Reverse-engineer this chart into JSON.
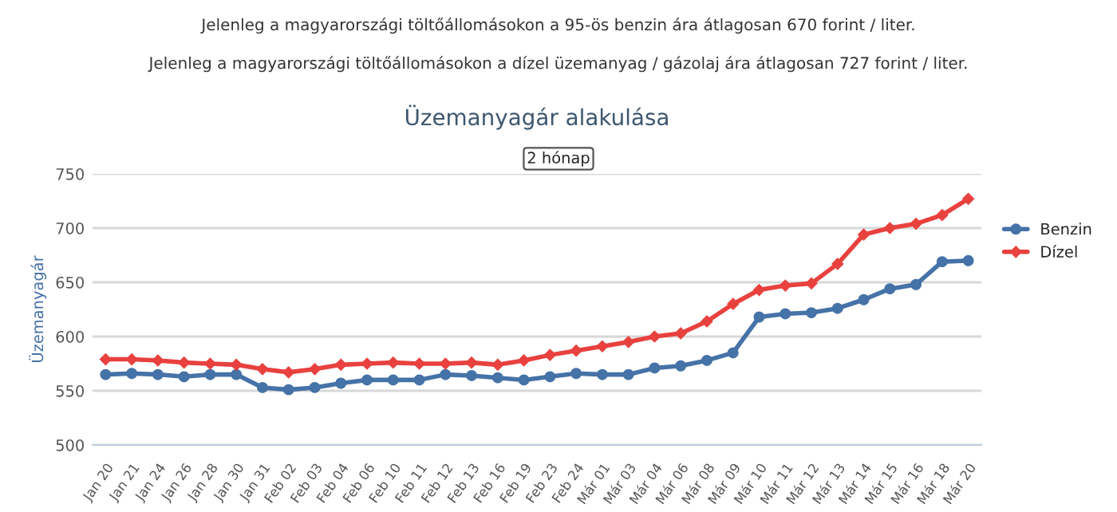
{
  "chart_data": {
    "type": "line",
    "title": "Üzemanyagár alakulása",
    "ylabel": "Üzemanyagár",
    "annotations": [
      "Jelenleg a magyarországi töltőállomásokon a 95-ös benzin ára átlagosan 670 forint / liter.",
      "Jelenleg a magyarországi töltőállomásokon a dízel üzemanyag / gázolaj ára átlagosan 727 forint / liter.",
      "2 hónap"
    ],
    "categories": [
      "Jan 20",
      "Jan 21",
      "Jan 24",
      "Jan 26",
      "Jan 28",
      "Jan 30",
      "Jan 31",
      "Feb 02",
      "Feb 03",
      "Feb 04",
      "Feb 06",
      "Feb 10",
      "Feb 11",
      "Feb 12",
      "Feb 13",
      "Feb 16",
      "Feb 19",
      "Feb 23",
      "Feb 24",
      "Már 01",
      "Már 03",
      "Már 04",
      "Már 06",
      "Már 08",
      "Már 09",
      "Már 10",
      "Már 11",
      "Már 12",
      "Már 13",
      "Már 14",
      "Már 15",
      "Már 16",
      "Már 18",
      "Már 20"
    ],
    "series": [
      {
        "name": "Benzin",
        "color": "#4572a7",
        "marker": "circle",
        "values": [
          565,
          566,
          565,
          563,
          565,
          565,
          553,
          551,
          553,
          557,
          560,
          560,
          560,
          565,
          564,
          562,
          560,
          563,
          566,
          565,
          565,
          571,
          573,
          578,
          585,
          618,
          621,
          622,
          626,
          634,
          644,
          648,
          669,
          670
        ]
      },
      {
        "name": "Dízel",
        "color": "#e8413e",
        "marker": "diamond",
        "values": [
          579,
          579,
          578,
          576,
          575,
          574,
          570,
          567,
          570,
          574,
          575,
          576,
          575,
          575,
          576,
          574,
          578,
          583,
          587,
          591,
          595,
          600,
          603,
          614,
          630,
          643,
          647,
          649,
          667,
          694,
          700,
          704,
          712,
          727
        ]
      }
    ],
    "ylim": [
      500,
      750
    ],
    "yticks": [
      500,
      550,
      600,
      650,
      700,
      750
    ],
    "grid": "y",
    "legend": "right",
    "line_style": "solid"
  }
}
